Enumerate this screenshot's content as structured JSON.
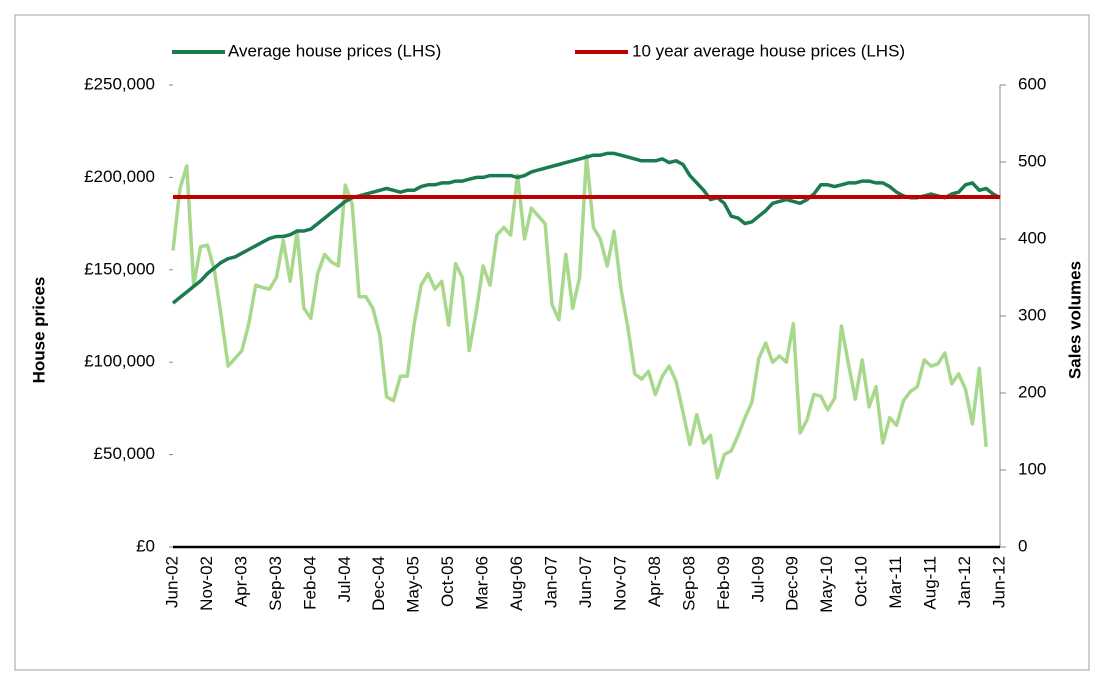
{
  "chart_data": {
    "type": "line",
    "categories": [
      "Jun-02",
      null,
      null,
      null,
      null,
      "Nov-02",
      null,
      null,
      null,
      null,
      "Apr-03",
      null,
      null,
      null,
      null,
      "Sep-03",
      null,
      null,
      null,
      null,
      "Feb-04",
      null,
      null,
      null,
      null,
      "Jul-04",
      null,
      null,
      null,
      null,
      "Dec-04",
      null,
      null,
      null,
      null,
      "May-05",
      null,
      null,
      null,
      null,
      "Oct-05",
      null,
      null,
      null,
      null,
      "Mar-06",
      null,
      null,
      null,
      null,
      "Aug-06",
      null,
      null,
      null,
      null,
      "Jan-07",
      null,
      null,
      null,
      null,
      "Jun-07",
      null,
      null,
      null,
      null,
      "Nov-07",
      null,
      null,
      null,
      null,
      "Apr-08",
      null,
      null,
      null,
      null,
      "Sep-08",
      null,
      null,
      null,
      null,
      "Feb-09",
      null,
      null,
      null,
      null,
      "Jul-09",
      null,
      null,
      null,
      null,
      "Dec-09",
      null,
      null,
      null,
      null,
      "May-10",
      null,
      null,
      null,
      null,
      "Oct-10",
      null,
      null,
      null,
      null,
      "Mar-11",
      null,
      null,
      null,
      null,
      "Aug-11",
      null,
      null,
      null,
      null,
      "Jan-12",
      null,
      null,
      null,
      null,
      "Jun-12"
    ],
    "series": [
      {
        "name": "Average house prices (LHS)",
        "color": "#1a7a50",
        "values": [
          132000,
          135000,
          138000,
          141000,
          144000,
          148000,
          151000,
          154000,
          156000,
          157000,
          159000,
          161000,
          163000,
          165000,
          167000,
          168000,
          168000,
          169000,
          171000,
          171000,
          172000,
          175000,
          178000,
          181000,
          184000,
          187000,
          189000,
          190000,
          191000,
          192000,
          193000,
          194000,
          193000,
          192000,
          193000,
          193000,
          195000,
          196000,
          196000,
          197000,
          197000,
          198000,
          198000,
          199000,
          200000,
          200000,
          201000,
          201000,
          201000,
          201000,
          200000,
          201000,
          203000,
          204000,
          205000,
          206000,
          207000,
          208000,
          209000,
          210000,
          211000,
          212000,
          212000,
          213000,
          213000,
          212000,
          211000,
          210000,
          209000,
          209000,
          209000,
          210000,
          208000,
          209000,
          207000,
          201000,
          197000,
          193000,
          188000,
          189000,
          186000,
          179000,
          178000,
          175000,
          176000,
          179000,
          182000,
          186000,
          187000,
          188000,
          187000,
          186000,
          188000,
          191000,
          196000,
          196000,
          195000,
          196000,
          197000,
          197000,
          198000,
          198000,
          197000,
          197000,
          195000,
          192000,
          190000,
          189000,
          189000,
          190000,
          191000,
          190000,
          189000,
          191000,
          192000,
          196000,
          197000,
          193000,
          194000,
          191000,
          189000
        ]
      },
      {
        "name": "10 year average house prices (LHS)",
        "color": "#c00000",
        "values": [
          189400,
          189400,
          189400,
          189400,
          189400,
          189400,
          189400,
          189400,
          189400,
          189400,
          189400,
          189400,
          189400,
          189400,
          189400,
          189400,
          189400,
          189400,
          189400,
          189400,
          189400,
          189400,
          189400,
          189400,
          189400,
          189400,
          189400,
          189400,
          189400,
          189400,
          189400,
          189400,
          189400,
          189400,
          189400,
          189400,
          189400,
          189400,
          189400,
          189400,
          189400,
          189400,
          189400,
          189400,
          189400,
          189400,
          189400,
          189400,
          189400,
          189400,
          189400,
          189400,
          189400,
          189400,
          189400,
          189400,
          189400,
          189400,
          189400,
          189400,
          189400,
          189400,
          189400,
          189400,
          189400,
          189400,
          189400,
          189400,
          189400,
          189400,
          189400,
          189400,
          189400,
          189400,
          189400,
          189400,
          189400,
          189400,
          189400,
          189400,
          189400,
          189400,
          189400,
          189400,
          189400,
          189400,
          189400,
          189400,
          189400,
          189400,
          189400,
          189400,
          189400,
          189400,
          189400,
          189400,
          189400,
          189400,
          189400,
          189400,
          189400,
          189400,
          189400,
          189400,
          189400,
          189400,
          189400,
          189400,
          189400,
          189400,
          189400,
          189400,
          189400,
          189400,
          189400,
          189400,
          189400,
          189400,
          189400,
          189400,
          189400
        ]
      },
      {
        "axis": "y2",
        "color": "#a8d88c",
        "values": [
          385,
          465,
          495,
          340,
          390,
          392,
          360,
          300,
          235,
          245,
          255,
          290,
          340,
          337,
          335,
          350,
          398,
          345,
          410,
          310,
          297,
          355,
          380,
          370,
          365,
          470,
          445,
          325,
          325,
          310,
          275,
          195,
          190,
          222,
          222,
          290,
          340,
          355,
          335,
          345,
          288,
          368,
          350,
          255,
          305,
          365,
          340,
          405,
          415,
          405,
          483,
          400,
          440,
          430,
          420,
          315,
          295,
          380,
          310,
          350,
          508,
          415,
          400,
          365,
          410,
          335,
          285,
          225,
          218,
          228,
          198,
          222,
          235,
          215,
          175,
          133,
          172,
          135,
          145,
          90,
          120,
          125,
          145,
          168,
          188,
          245,
          265,
          240,
          248,
          240,
          290,
          148,
          165,
          198,
          196,
          178,
          193,
          287,
          238,
          192,
          243,
          182,
          208,
          135,
          168,
          158,
          190,
          202,
          208,
          243,
          235,
          238,
          252,
          212,
          225,
          205,
          160,
          232,
          130,
          null,
          null
        ]
      }
    ],
    "y_label": "House prices",
    "y2_label": "Sales volumes",
    "ylim": [
      0,
      250000
    ],
    "yticks": [
      {
        "value": 0,
        "label": "£0"
      },
      {
        "value": 50000,
        "label": "£50,000"
      },
      {
        "value": 100000,
        "label": "£100,000"
      },
      {
        "value": 150000,
        "label": "£150,000"
      },
      {
        "value": 200000,
        "label": "£200,000"
      },
      {
        "value": 250000,
        "label": "£250,000"
      }
    ],
    "y2lim": [
      0,
      600
    ],
    "y2ticks": [
      0,
      100,
      200,
      300,
      400,
      500,
      600
    ],
    "legend": "top"
  }
}
